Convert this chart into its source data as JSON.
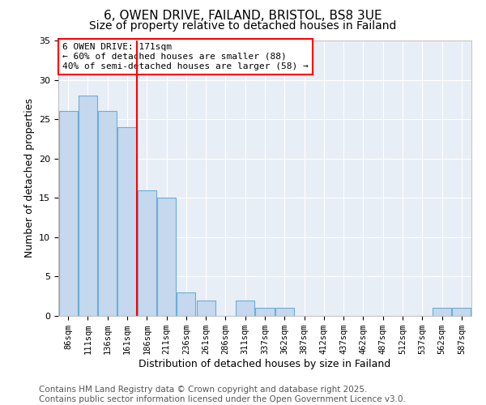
{
  "title1": "6, OWEN DRIVE, FAILAND, BRISTOL, BS8 3UE",
  "title2": "Size of property relative to detached houses in Failand",
  "xlabel": "Distribution of detached houses by size in Failand",
  "ylabel": "Number of detached properties",
  "bar_labels": [
    "86sqm",
    "111sqm",
    "136sqm",
    "161sqm",
    "186sqm",
    "211sqm",
    "236sqm",
    "261sqm",
    "286sqm",
    "311sqm",
    "337sqm",
    "362sqm",
    "387sqm",
    "412sqm",
    "437sqm",
    "462sqm",
    "487sqm",
    "512sqm",
    "537sqm",
    "562sqm",
    "587sqm"
  ],
  "bar_values": [
    26,
    28,
    26,
    24,
    16,
    15,
    3,
    2,
    0,
    2,
    1,
    1,
    0,
    0,
    0,
    0,
    0,
    0,
    0,
    1,
    1
  ],
  "bar_color": "#C5D8EE",
  "bar_edge_color": "#6BAED6",
  "background_color": "#E8EEF6",
  "vline_color": "red",
  "vline_x": 3.5,
  "annotation_text": "6 OWEN DRIVE: 171sqm\n← 60% of detached houses are smaller (88)\n40% of semi-detached houses are larger (58) →",
  "annotation_box_color": "white",
  "annotation_box_edgecolor": "red",
  "ylim": [
    0,
    35
  ],
  "yticks": [
    0,
    5,
    10,
    15,
    20,
    25,
    30,
    35
  ],
  "footer": "Contains HM Land Registry data © Crown copyright and database right 2025.\nContains public sector information licensed under the Open Government Licence v3.0.",
  "title_fontsize": 11,
  "subtitle_fontsize": 10,
  "tick_fontsize": 7.5,
  "axis_label_fontsize": 9,
  "annotation_fontsize": 8,
  "footer_fontsize": 7.5
}
